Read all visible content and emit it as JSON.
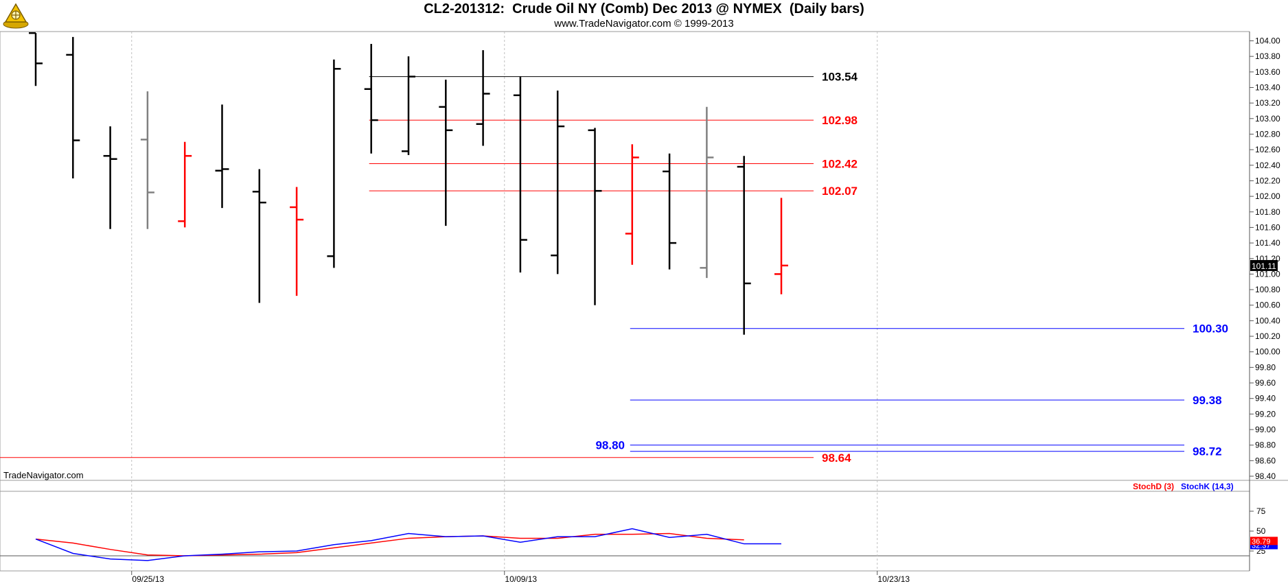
{
  "header": {
    "title": "CL2-201312:  Crude Oil NY (Comb) Dec 2013 @ NYMEX  (Daily bars)",
    "subtitle": "www.TradeNavigator.com © 1999-2013"
  },
  "watermark": "TradeNavigator.com",
  "colors": {
    "up": "#000000",
    "down": "#ff0000",
    "neutral": "#808080",
    "stochD": "#ff0000",
    "stochK": "#0000ff",
    "grid": "#c0c0c0"
  },
  "chart_data": [
    {
      "type": "ohlc",
      "title": "",
      "ylim": [
        98.35,
        104.1
      ],
      "y_ticks": [
        "104.00",
        "103.80",
        "103.60",
        "103.40",
        "103.20",
        "103.00",
        "102.80",
        "102.60",
        "102.40",
        "102.20",
        "102.00",
        "101.80",
        "101.60",
        "101.40",
        "101.20",
        "101.00",
        "100.80",
        "100.60",
        "100.40",
        "100.20",
        "100.00",
        "99.80",
        "99.60",
        "99.40",
        "99.20",
        "99.00",
        "98.80",
        "98.60",
        "98.40"
      ],
      "x_ticks": [
        {
          "label": "09/25/13",
          "bar": 3
        },
        {
          "label": "10/09/13",
          "bar": 13
        },
        {
          "label": "10/23/13",
          "bar": 23
        }
      ],
      "last_price": "101.11",
      "bars": [
        {
          "o": 104.1,
          "h": 104.1,
          "l": 103.42,
          "c": 103.71,
          "color": "up"
        },
        {
          "o": 103.82,
          "h": 104.05,
          "l": 102.23,
          "c": 102.72,
          "color": "up"
        },
        {
          "o": 102.52,
          "h": 102.9,
          "l": 101.58,
          "c": 102.48,
          "color": "up"
        },
        {
          "o": 102.73,
          "h": 103.35,
          "l": 101.58,
          "c": 102.05,
          "color": "neutral"
        },
        {
          "o": 101.68,
          "h": 102.7,
          "l": 101.6,
          "c": 102.52,
          "color": "down"
        },
        {
          "o": 102.33,
          "h": 103.18,
          "l": 101.85,
          "c": 102.35,
          "color": "up"
        },
        {
          "o": 102.06,
          "h": 102.35,
          "l": 100.63,
          "c": 101.92,
          "color": "up"
        },
        {
          "o": 101.86,
          "h": 102.12,
          "l": 100.72,
          "c": 101.7,
          "color": "down"
        },
        {
          "o": 101.23,
          "h": 103.76,
          "l": 101.08,
          "c": 103.64,
          "color": "up"
        },
        {
          "o": 103.38,
          "h": 103.96,
          "l": 102.55,
          "c": 102.98,
          "color": "up"
        },
        {
          "o": 102.58,
          "h": 103.8,
          "l": 102.53,
          "c": 103.54,
          "color": "up"
        },
        {
          "o": 103.15,
          "h": 103.5,
          "l": 101.62,
          "c": 102.85,
          "color": "up"
        },
        {
          "o": 102.93,
          "h": 103.88,
          "l": 102.65,
          "c": 103.32,
          "color": "up"
        },
        {
          "o": 103.3,
          "h": 103.54,
          "l": 101.02,
          "c": 101.44,
          "color": "up"
        },
        {
          "o": 101.24,
          "h": 103.36,
          "l": 101.0,
          "c": 102.9,
          "color": "up"
        },
        {
          "o": 102.85,
          "h": 102.88,
          "l": 100.6,
          "c": 102.07,
          "color": "up"
        },
        {
          "o": 101.52,
          "h": 102.67,
          "l": 101.12,
          "c": 102.5,
          "color": "down"
        },
        {
          "o": 102.32,
          "h": 102.55,
          "l": 101.06,
          "c": 101.4,
          "color": "up"
        },
        {
          "o": 101.08,
          "h": 103.15,
          "l": 100.95,
          "c": 102.5,
          "color": "neutral"
        },
        {
          "o": 102.38,
          "h": 102.52,
          "l": 100.22,
          "c": 100.88,
          "color": "up"
        },
        {
          "o": 101.0,
          "h": 101.98,
          "l": 100.74,
          "c": 101.11,
          "color": "down"
        }
      ],
      "levels": [
        {
          "value": 103.54,
          "label": "103.54",
          "color": "#000000",
          "from_bar": 9,
          "label_pos": "mid"
        },
        {
          "value": 102.98,
          "label": "102.98",
          "color": "#ff0000",
          "from_bar": 9,
          "label_pos": "mid"
        },
        {
          "value": 102.42,
          "label": "102.42",
          "color": "#ff0000",
          "from_bar": 9,
          "label_pos": "mid"
        },
        {
          "value": 102.07,
          "label": "102.07",
          "color": "#ff0000",
          "from_bar": 9,
          "label_pos": "mid"
        },
        {
          "value": 100.3,
          "label": "100.30",
          "color": "#0000ff",
          "from_bar": 16,
          "label_pos": "right"
        },
        {
          "value": 99.38,
          "label": "99.38",
          "color": "#0000ff",
          "from_bar": 16,
          "label_pos": "right"
        },
        {
          "value": 98.8,
          "label": "98.80",
          "color": "#0000ff",
          "from_bar": 16,
          "label_pos": "left"
        },
        {
          "value": 98.72,
          "label": "98.72",
          "color": "#0000ff",
          "from_bar": 16,
          "label_pos": "right"
        },
        {
          "value": 98.64,
          "label": "98.64",
          "color": "#ff0000",
          "from_bar": -1,
          "label_pos": "mid"
        }
      ]
    },
    {
      "type": "line",
      "ylim": [
        0,
        100
      ],
      "y_ticks": [
        "75",
        "50",
        "25"
      ],
      "legend": [
        "StochD (3)",
        "StochK (14,3)"
      ],
      "last_values": {
        "stochD": "36.79",
        "stochK": "32.37"
      },
      "series": [
        {
          "name": "StochD (3)",
          "color": "#ff0000",
          "values": [
            40,
            35,
            27,
            20,
            19,
            20,
            21,
            23,
            29,
            35,
            41,
            43,
            44,
            41,
            41,
            46,
            46,
            47,
            41,
            39,
            null
          ]
        },
        {
          "name": "StochK (14,3)",
          "color": "#0000ff",
          "values": [
            40,
            22,
            15,
            13,
            19,
            21,
            24,
            25,
            33,
            38,
            47,
            43,
            44,
            36,
            43,
            43,
            53,
            42,
            46,
            34,
            34
          ]
        }
      ]
    }
  ]
}
